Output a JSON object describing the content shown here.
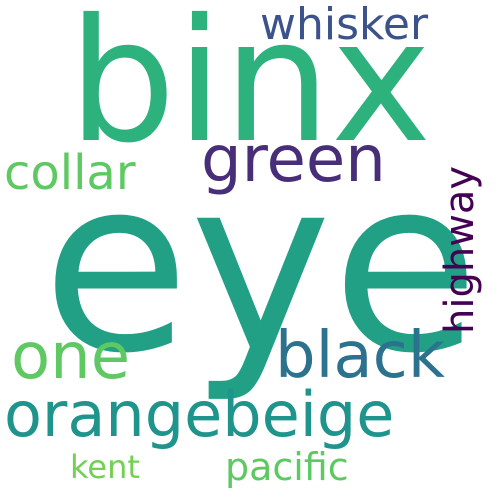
{
  "words": {
    "binx": {
      "text": "binx",
      "color": "#2db27d"
    },
    "eye": {
      "text": "eye",
      "color": "#21a085"
    },
    "whisker": {
      "text": "whisker",
      "color": "#3b528b"
    },
    "green": {
      "text": "green",
      "color": "#482d78"
    },
    "collar": {
      "text": "collar",
      "color": "#5ec962"
    },
    "highway": {
      "text": "highway",
      "color": "#440154"
    },
    "one": {
      "text": "one",
      "color": "#5ec962"
    },
    "black": {
      "text": "black",
      "color": "#2c718e"
    },
    "orangebeige": {
      "text": "orangebeige",
      "color": "#1f948c"
    },
    "kent": {
      "text": "kent",
      "color": "#73d055"
    },
    "pacific": {
      "text": "pacific",
      "color": "#5ec962"
    }
  }
}
